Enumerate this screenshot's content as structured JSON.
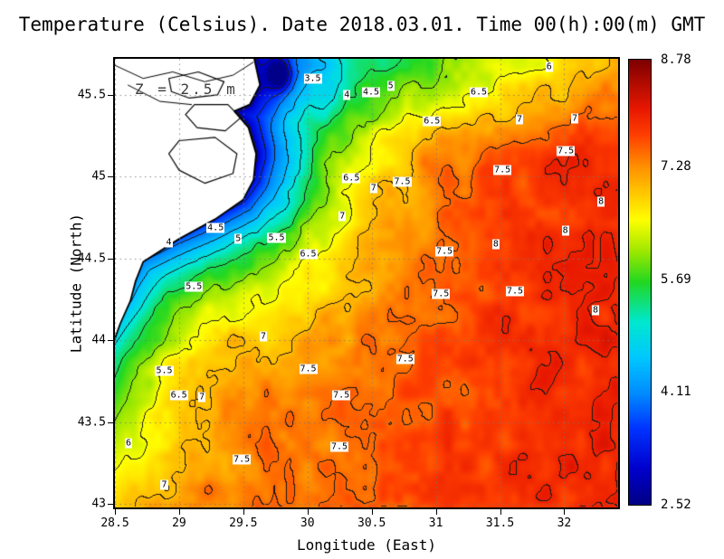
{
  "figure": {
    "title": "Temperature (Celsius). Date 2018.03.01. Time 00(h):00(m) GMT",
    "depth_annotation": "Z = 2.5 m"
  },
  "axes": {
    "x_label": "Longitude (East)",
    "y_label": "Latitude (North)",
    "x_ticks": [
      "28.5",
      "29",
      "29.5",
      "30",
      "30.5",
      "31",
      "31.5",
      "32"
    ],
    "y_ticks": [
      "43",
      "43.5",
      "44",
      "44.5",
      "45",
      "45.5"
    ]
  },
  "colorbar": {
    "tick_labels": [
      "8.78",
      "7.28",
      "5.69",
      "4.11",
      "2.52"
    ]
  },
  "chart_data": {
    "type": "heatmap",
    "title": "Temperature (Celsius). Date 2018.03.01. Time 00(h):00(m) GMT",
    "xlabel": "Longitude (East)",
    "ylabel": "Latitude (North)",
    "units": "Celsius",
    "x_range": [
      28.5,
      32.42
    ],
    "y_range": [
      42.98,
      45.72
    ],
    "value_range": [
      2.52,
      8.78
    ],
    "contour_interval": 0.5,
    "colorbar_ticks": [
      8.78,
      7.28,
      5.69,
      4.11,
      2.52
    ],
    "grid": true,
    "legend_position": "right-colorbar",
    "palette": [
      {
        "t": 0.0,
        "c": "#000085"
      },
      {
        "t": 0.08,
        "c": "#0000cd"
      },
      {
        "t": 0.17,
        "c": "#0033ff"
      },
      {
        "t": 0.25,
        "c": "#008cff"
      },
      {
        "t": 0.33,
        "c": "#00c8ff"
      },
      {
        "t": 0.41,
        "c": "#00e8d0"
      },
      {
        "t": 0.5,
        "c": "#22d822"
      },
      {
        "t": 0.57,
        "c": "#a0e800"
      },
      {
        "t": 0.64,
        "c": "#ffff00"
      },
      {
        "t": 0.7,
        "c": "#ffc800"
      },
      {
        "t": 0.76,
        "c": "#ff9000"
      },
      {
        "t": 0.83,
        "c": "#ff4000"
      },
      {
        "t": 0.89,
        "c": "#e81800"
      },
      {
        "t": 1.0,
        "c": "#7f0000"
      }
    ],
    "contour_labels": [
      {
        "v": "3.5",
        "x": 39.3,
        "y": 4.4
      },
      {
        "v": "4",
        "x": 46.1,
        "y": 8.0
      },
      {
        "v": "4.5",
        "x": 50.9,
        "y": 7.4
      },
      {
        "v": "5",
        "x": 54.8,
        "y": 6.0
      },
      {
        "v": "6",
        "x": 86.3,
        "y": 1.8
      },
      {
        "v": "6.5",
        "x": 72.3,
        "y": 7.4
      },
      {
        "v": "6.5",
        "x": 63.0,
        "y": 14.0
      },
      {
        "v": "7",
        "x": 80.4,
        "y": 13.6
      },
      {
        "v": "7",
        "x": 91.4,
        "y": 13.4
      },
      {
        "v": "7.5",
        "x": 89.6,
        "y": 20.6
      },
      {
        "v": "7.5",
        "x": 77.0,
        "y": 24.8
      },
      {
        "v": "6.5",
        "x": 47.0,
        "y": 26.6
      },
      {
        "v": "7",
        "x": 51.4,
        "y": 28.8
      },
      {
        "v": "7.5",
        "x": 57.1,
        "y": 27.4
      },
      {
        "v": "8",
        "x": 96.6,
        "y": 31.8
      },
      {
        "v": "7",
        "x": 45.2,
        "y": 35.0
      },
      {
        "v": "4",
        "x": 10.7,
        "y": 41.0
      },
      {
        "v": "4.5",
        "x": 20.0,
        "y": 37.8
      },
      {
        "v": "5",
        "x": 24.5,
        "y": 40.2
      },
      {
        "v": "5.5",
        "x": 32.1,
        "y": 40.0
      },
      {
        "v": "6.5",
        "x": 38.4,
        "y": 43.6
      },
      {
        "v": "7.5",
        "x": 65.5,
        "y": 43.0
      },
      {
        "v": "8",
        "x": 75.7,
        "y": 41.4
      },
      {
        "v": "8",
        "x": 89.5,
        "y": 38.4
      },
      {
        "v": "5.5",
        "x": 15.7,
        "y": 50.8
      },
      {
        "v": "7.5",
        "x": 64.8,
        "y": 52.4
      },
      {
        "v": "7.5",
        "x": 79.5,
        "y": 51.8
      },
      {
        "v": "8",
        "x": 95.5,
        "y": 56.0
      },
      {
        "v": "7",
        "x": 29.5,
        "y": 61.8
      },
      {
        "v": "5.5",
        "x": 9.8,
        "y": 69.6
      },
      {
        "v": "7.5",
        "x": 38.4,
        "y": 69.2
      },
      {
        "v": "7.5",
        "x": 57.7,
        "y": 67.0
      },
      {
        "v": "6.5",
        "x": 12.7,
        "y": 75.0
      },
      {
        "v": "7",
        "x": 17.3,
        "y": 75.4
      },
      {
        "v": "7.5",
        "x": 45.0,
        "y": 75.0
      },
      {
        "v": "6",
        "x": 2.7,
        "y": 85.6
      },
      {
        "v": "7.5",
        "x": 44.6,
        "y": 86.4
      },
      {
        "v": "7.5",
        "x": 25.2,
        "y": 89.4
      },
      {
        "v": "7",
        "x": 9.8,
        "y": 95.0
      }
    ],
    "render_model": {
      "coastline": [
        [
          29.58,
          45.74
        ],
        [
          29.63,
          45.56
        ],
        [
          29.55,
          45.44
        ],
        [
          29.43,
          45.4
        ],
        [
          29.54,
          45.3
        ],
        [
          29.6,
          45.14
        ],
        [
          29.58,
          44.98
        ],
        [
          29.5,
          44.86
        ],
        [
          29.28,
          44.74
        ],
        [
          29.0,
          44.62
        ],
        [
          28.72,
          44.48
        ],
        [
          28.66,
          44.36
        ],
        [
          28.62,
          44.24
        ],
        [
          28.54,
          44.1
        ],
        [
          28.46,
          43.92
        ],
        [
          28.42,
          43.5
        ],
        [
          28.4,
          43.0
        ]
      ],
      "land_close": [
        [
          27.9,
          42.9
        ],
        [
          27.9,
          45.95
        ]
      ],
      "lakes": [
        [
          [
            28.92,
            45.6
          ],
          [
            29.15,
            45.64
          ],
          [
            29.35,
            45.58
          ],
          [
            29.3,
            45.5
          ],
          [
            29.08,
            45.48
          ],
          [
            28.94,
            45.52
          ]
        ],
        [
          [
            29.12,
            45.44
          ],
          [
            29.38,
            45.44
          ],
          [
            29.48,
            45.36
          ],
          [
            29.36,
            45.28
          ],
          [
            29.14,
            45.3
          ],
          [
            29.05,
            45.38
          ]
        ],
        [
          [
            29.0,
            45.22
          ],
          [
            29.28,
            45.24
          ],
          [
            29.45,
            45.14
          ],
          [
            29.42,
            45.02
          ],
          [
            29.2,
            44.96
          ],
          [
            29.0,
            45.04
          ],
          [
            28.92,
            45.14
          ]
        ]
      ],
      "rivers": [
        [
          [
            28.5,
            45.68
          ],
          [
            28.72,
            45.6
          ],
          [
            28.95,
            45.64
          ],
          [
            29.2,
            45.58
          ],
          [
            29.42,
            45.62
          ],
          [
            29.58,
            45.7
          ]
        ],
        [
          [
            28.6,
            45.56
          ],
          [
            28.85,
            45.46
          ],
          [
            29.1,
            45.44
          ]
        ]
      ],
      "params": {
        "base": 7.5,
        "east_grad": 0.5,
        "north_cool": 1.7,
        "coast_min": 2.9,
        "coast_lat_grad": 1.8,
        "coast_width": 0.55,
        "plume_lon": 29.78,
        "plume_lat": 45.63,
        "plume_amp": 1.8,
        "plume_sigma": 0.008,
        "noise_amp": 0.3
      }
    }
  }
}
